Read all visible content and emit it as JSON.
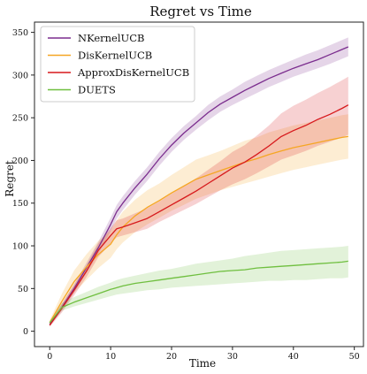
{
  "chart_data": {
    "type": "line",
    "title": "Regret vs Time",
    "xlabel": "Time",
    "ylabel": "Regret",
    "xlim": [
      -2.5,
      51.5
    ],
    "ylim": [
      -18,
      362
    ],
    "xticks": [
      0,
      10,
      20,
      30,
      40,
      50
    ],
    "yticks": [
      0,
      50,
      100,
      150,
      200,
      250,
      300,
      350
    ],
    "grid": false,
    "legend_position": "top-left",
    "x": [
      0,
      2,
      4,
      6,
      8,
      10,
      11,
      12,
      14,
      16,
      18,
      20,
      22,
      24,
      26,
      28,
      30,
      32,
      34,
      36,
      38,
      40,
      42,
      44,
      46,
      48,
      49
    ],
    "series": [
      {
        "name": "NKernelUCB",
        "color": "#7b2d8e",
        "values": [
          8,
          28,
          50,
          74,
          98,
          125,
          140,
          150,
          168,
          184,
          202,
          218,
          232,
          244,
          256,
          266,
          274,
          282,
          289,
          296,
          302,
          308,
          313,
          318,
          324,
          330,
          333
        ],
        "lower": [
          6,
          24,
          45,
          68,
          91,
          117,
          132,
          142,
          160,
          176,
          194,
          210,
          224,
          236,
          247,
          257,
          265,
          272,
          279,
          286,
          292,
          298,
          303,
          308,
          313,
          319,
          322
        ],
        "upper": [
          10,
          32,
          55,
          80,
          105,
          133,
          148,
          158,
          176,
          192,
          210,
          226,
          240,
          252,
          265,
          275,
          283,
          292,
          299,
          306,
          312,
          318,
          324,
          329,
          335,
          341,
          344
        ]
      },
      {
        "name": "DisKernelUCB",
        "color": "#f5a623",
        "values": [
          10,
          35,
          58,
          75,
          90,
          102,
          113,
          122,
          135,
          145,
          153,
          162,
          170,
          178,
          183,
          188,
          193,
          198,
          202,
          207,
          211,
          215,
          218,
          221,
          224,
          227,
          228
        ],
        "lower": [
          7,
          26,
          45,
          60,
          74,
          86,
          96,
          104,
          116,
          125,
          133,
          141,
          148,
          155,
          160,
          165,
          169,
          173,
          177,
          181,
          185,
          189,
          192,
          195,
          198,
          201,
          202
        ],
        "upper": [
          13,
          44,
          71,
          90,
          106,
          118,
          130,
          140,
          154,
          165,
          173,
          183,
          192,
          201,
          206,
          211,
          217,
          223,
          227,
          233,
          237,
          241,
          244,
          247,
          250,
          253,
          254
        ]
      },
      {
        "name": "ApproxDisKernelUCB",
        "color": "#d7191c",
        "values": [
          7,
          27,
          48,
          70,
          95,
          112,
          120,
          122,
          127,
          132,
          140,
          148,
          156,
          164,
          173,
          182,
          191,
          198,
          207,
          217,
          228,
          235,
          241,
          248,
          254,
          261,
          265
        ],
        "lower": [
          5,
          22,
          42,
          63,
          87,
          103,
          110,
          112,
          116,
          120,
          128,
          135,
          142,
          149,
          157,
          165,
          172,
          178,
          185,
          193,
          201,
          206,
          211,
          217,
          222,
          227,
          230
        ],
        "upper": [
          9,
          32,
          54,
          77,
          103,
          121,
          130,
          132,
          138,
          144,
          152,
          161,
          170,
          179,
          189,
          199,
          210,
          218,
          229,
          241,
          255,
          264,
          271,
          279,
          286,
          294,
          298
        ]
      },
      {
        "name": "DUETS",
        "color": "#6fbf3f",
        "values": [
          10,
          28,
          34,
          39,
          44,
          49,
          51,
          53,
          56,
          58,
          60,
          62,
          64,
          66,
          68,
          70,
          71,
          72,
          74,
          75,
          76,
          77,
          78,
          79,
          80,
          81,
          82
        ],
        "lower": [
          8,
          24,
          29,
          33,
          37,
          41,
          43,
          44,
          46,
          48,
          49,
          51,
          52,
          53,
          54,
          55,
          56,
          57,
          58,
          59,
          59,
          60,
          60,
          61,
          62,
          62,
          63
        ],
        "upper": [
          12,
          33,
          40,
          46,
          52,
          57,
          60,
          62,
          65,
          68,
          71,
          73,
          76,
          79,
          81,
          83,
          85,
          88,
          90,
          92,
          94,
          95,
          96,
          97,
          98,
          99,
          100
        ]
      }
    ]
  }
}
